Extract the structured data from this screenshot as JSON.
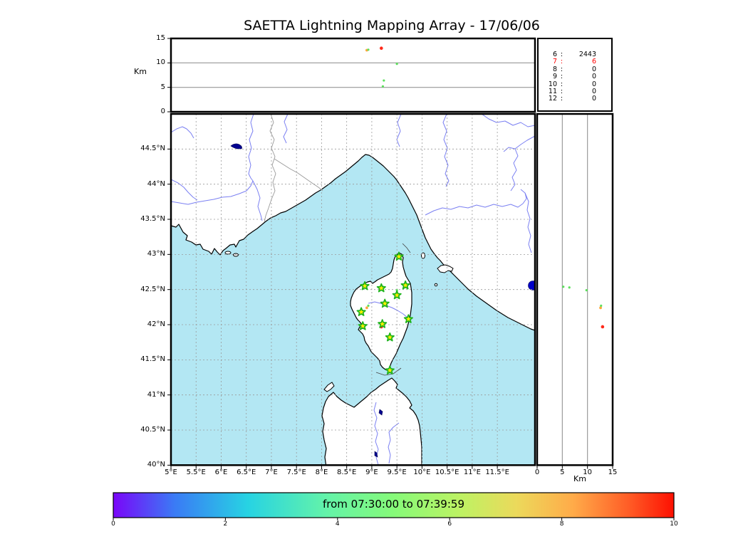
{
  "title": "SAETTA Lightning Mapping Array - 17/06/06",
  "stats_panel": {
    "separator": ":",
    "rows": [
      {
        "station": "6",
        "count": "2443",
        "color": "#000000"
      },
      {
        "station": "7",
        "count": "6",
        "color": "#ff0000"
      },
      {
        "station": "8",
        "count": "0",
        "color": "#000000"
      },
      {
        "station": "9",
        "count": "0",
        "color": "#000000"
      },
      {
        "station": "10",
        "count": "0",
        "color": "#000000"
      },
      {
        "station": "11",
        "count": "0",
        "color": "#000000"
      },
      {
        "station": "12",
        "count": "0",
        "color": "#000000"
      }
    ]
  },
  "chart_data": {
    "type": "scatter",
    "title": "SAETTA Lightning Mapping Array - 17/06/06",
    "panels": {
      "alt_vs_lon": {
        "ylabel": "Km",
        "ylim": [
          0,
          15
        ],
        "ytick_values": [
          15,
          10,
          5,
          0
        ],
        "ytick_labels": [
          "15",
          "10",
          "5",
          "0"
        ],
        "grid_values": [
          5,
          10
        ],
        "xlim": [
          5,
          12.25
        ]
      },
      "map": {
        "xlim": [
          5,
          12.25
        ],
        "ylim": [
          40,
          45
        ],
        "lon_tick_values": [
          5,
          5.5,
          6,
          6.5,
          7,
          7.5,
          8,
          8.5,
          9,
          9.5,
          10,
          10.5,
          11,
          11.5
        ],
        "lon_tick_labels": [
          "5°E",
          "5.5°E",
          "6°E",
          "6.5°E",
          "7°E",
          "7.5°E",
          "8°E",
          "8.5°E",
          "9°E",
          "9.5°E",
          "10°E",
          "10.5°E",
          "11°E",
          "11.5°E"
        ],
        "lat_tick_values": [
          44.5,
          44,
          43.5,
          43,
          42.5,
          42,
          41.5,
          41,
          40.5,
          40
        ],
        "lat_tick_labels": [
          "44.5°N",
          "44°N",
          "43.5°N",
          "43°N",
          "42.5°N",
          "42°N",
          "41.5°N",
          "41°N",
          "40.5°N",
          "40°N"
        ],
        "grid": "dashed",
        "sea_color": "#b3e7f3",
        "land_color": "#ffffff"
      },
      "alt_vs_lat": {
        "xlabel": "Km",
        "xlim": [
          0,
          15
        ],
        "xtick_values": [
          0,
          5,
          10,
          15
        ],
        "xtick_labels": [
          "0",
          "5",
          "10",
          "15"
        ],
        "grid_values": [
          5,
          10
        ],
        "ylim": [
          40,
          45
        ]
      }
    },
    "stations": [
      {
        "lon": 9.54,
        "lat": 42.97
      },
      {
        "lon": 8.86,
        "lat": 42.55
      },
      {
        "lon": 9.19,
        "lat": 42.52
      },
      {
        "lon": 9.67,
        "lat": 42.56
      },
      {
        "lon": 9.5,
        "lat": 42.42
      },
      {
        "lon": 9.26,
        "lat": 42.3
      },
      {
        "lon": 8.79,
        "lat": 42.18
      },
      {
        "lon": 9.73,
        "lat": 42.08
      },
      {
        "lon": 9.21,
        "lat": 42.01
      },
      {
        "lon": 8.82,
        "lat": 41.98
      },
      {
        "lon": 9.36,
        "lat": 41.82
      },
      {
        "lon": 9.36,
        "lat": 41.35
      }
    ],
    "station_marker": {
      "shape": "star",
      "fill": "#ffef00",
      "edge": "#1db31d"
    },
    "events": [
      {
        "lon": 9.5,
        "lat": 42.49,
        "alt_km": 9.8,
        "color": "#5ee05e",
        "size": 1.6
      },
      {
        "lon": 9.24,
        "lat": 42.53,
        "alt_km": 6.4,
        "color": "#5ee05e",
        "size": 1.6
      },
      {
        "lon": 9.22,
        "lat": 42.54,
        "alt_km": 5.2,
        "color": "#5ee05e",
        "size": 1.6
      },
      {
        "lon": 8.9,
        "lat": 42.24,
        "alt_km": 12.6,
        "color": "#ffa73d",
        "size": 1.9
      },
      {
        "lon": 8.93,
        "lat": 42.27,
        "alt_km": 12.7,
        "color": "#5ee05e",
        "size": 1.6
      },
      {
        "lon": 9.19,
        "lat": 41.97,
        "alt_km": 13.0,
        "color": "#ff2a1a",
        "size": 2.3
      }
    ],
    "station_counts": {
      "labels": [
        "6",
        "7",
        "8",
        "9",
        "10",
        "11",
        "12"
      ],
      "values": [
        2443,
        6,
        0,
        0,
        0,
        0,
        0
      ],
      "highlight_label": "7",
      "highlight_color": "#ff0000"
    },
    "colorbar": {
      "label": "from 07:30:00 to 07:39:59",
      "range": [
        0,
        10
      ],
      "tick_values": [
        0,
        2,
        4,
        6,
        8,
        10
      ],
      "tick_labels": [
        "0",
        "2",
        "4",
        "6",
        "8",
        "10"
      ],
      "colormap": "rainbow",
      "colormap_stops": [
        "#7a06f9",
        "#3a7bf5",
        "#27d3e3",
        "#63f3a9",
        "#86fa79",
        "#bef263",
        "#ecd95b",
        "#ffab49",
        "#ff5c26",
        "#fd1001"
      ]
    }
  }
}
